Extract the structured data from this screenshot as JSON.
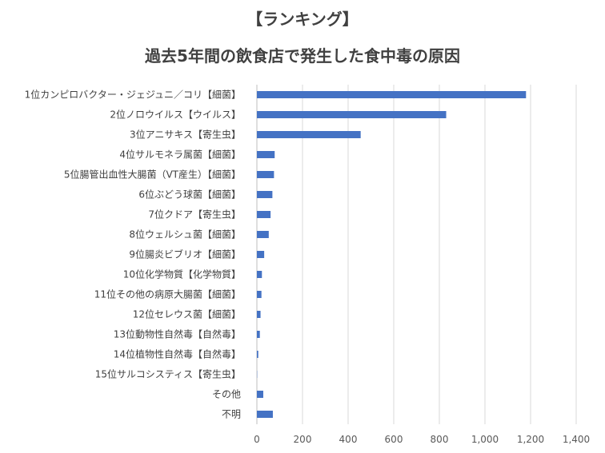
{
  "header": {
    "title": "【ランキング】",
    "subtitle": "過去5年間の飲食店で発生した食中毒の原因"
  },
  "chart_data": {
    "type": "bar",
    "orientation": "horizontal",
    "categories": [
      "1位カンピロバクター・ジェジュニ／コリ【細菌】",
      "2位ノロウイルス【ウイルス】",
      "3位アニサキス【寄生虫】",
      "4位サルモネラ属菌【細菌】",
      "5位腸管出血性大腸菌（VT産生）【細菌】",
      "6位ぶどう球菌【細菌】",
      "7位クドア【寄生虫】",
      "8位ウェルシュ菌【細菌】",
      "9位腸炎ビブリオ【細菌】",
      "10位化学物質【化学物質】",
      "11位その他の病原大腸菌【細菌】",
      "12位セレウス菌【細菌】",
      "13位動物性自然毒【自然毒】",
      "14位植物性自然毒【自然毒】",
      "15位サルコシスティス【寄生虫】",
      "その他",
      "不明"
    ],
    "values": [
      1180,
      830,
      455,
      78,
      75,
      68,
      60,
      52,
      32,
      22,
      20,
      16,
      13,
      6,
      1,
      28,
      70
    ],
    "xlim": [
      0,
      1400
    ],
    "xticks": [
      0,
      200,
      400,
      600,
      800,
      1000,
      1200,
      1400
    ],
    "xtick_labels": [
      "0",
      "200",
      "400",
      "600",
      "800",
      "1,000",
      "1,200",
      "1,400"
    ],
    "grid": true,
    "legend": "none",
    "colors": {
      "bar": "#4472c4",
      "grid": "#d9d9d9",
      "text": "#404040"
    }
  }
}
